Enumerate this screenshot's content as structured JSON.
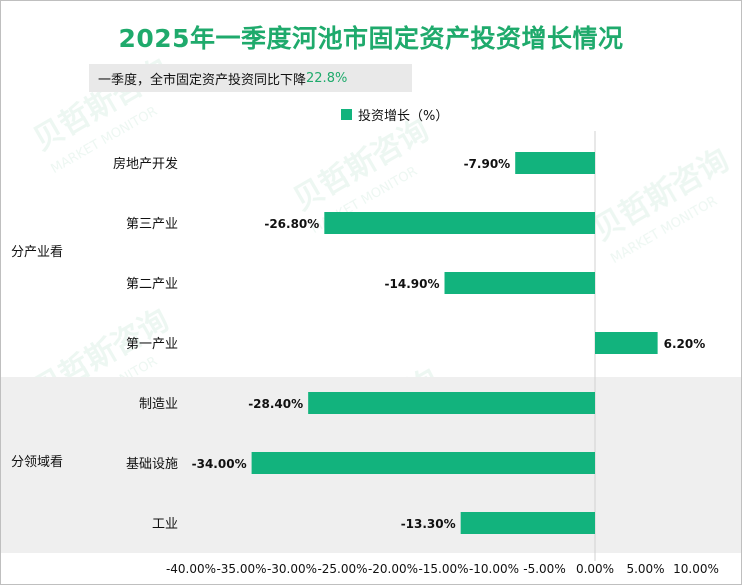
{
  "title": "2025年一季度河池市固定资产投资增长情况",
  "subtitle": {
    "text": "一季度，全市固定资产投资同比下降",
    "highlight": "22.8%"
  },
  "legend": {
    "label": "投资增长（%）",
    "color": "#12b37d"
  },
  "watermark": {
    "text_cn": "贝哲斯咨询",
    "text_en": "MARKET MONITOR"
  },
  "groups": [
    {
      "label": "分产业看",
      "shaded": false
    },
    {
      "label": "分领域看",
      "shaded": true
    }
  ],
  "colors": {
    "bar": "#12b37d",
    "shade": "#efefef",
    "accent": "#1faa6c"
  },
  "chart_data": {
    "type": "bar",
    "orientation": "horizontal",
    "categories": [
      "房地产开发",
      "第三产业",
      "第二产业",
      "第一产业",
      "制造业",
      "基础设施",
      "工业"
    ],
    "groups": [
      {
        "label": "分产业看",
        "categories": [
          "房地产开发",
          "第三产业",
          "第二产业",
          "第一产业"
        ]
      },
      {
        "label": "分领域看",
        "categories": [
          "制造业",
          "基础设施",
          "工业"
        ]
      }
    ],
    "series": [
      {
        "name": "投资增长（%）",
        "values": [
          -7.9,
          -26.8,
          -14.9,
          6.2,
          -28.4,
          -34.0,
          -13.3
        ]
      }
    ],
    "value_labels": [
      "-7.90%",
      "-26.80%",
      "-14.90%",
      "6.20%",
      "-28.40%",
      "-34.00%",
      "-13.30%"
    ],
    "xlim": [
      -40,
      10
    ],
    "x_ticks": [
      "-40.00%",
      "-35.00%",
      "-30.00%",
      "-25.00%",
      "-20.00%",
      "-15.00%",
      "-10.00%",
      "-5.00%",
      "0.00%",
      "5.00%",
      "10.00%"
    ],
    "grid": false,
    "legend_position": "top"
  }
}
